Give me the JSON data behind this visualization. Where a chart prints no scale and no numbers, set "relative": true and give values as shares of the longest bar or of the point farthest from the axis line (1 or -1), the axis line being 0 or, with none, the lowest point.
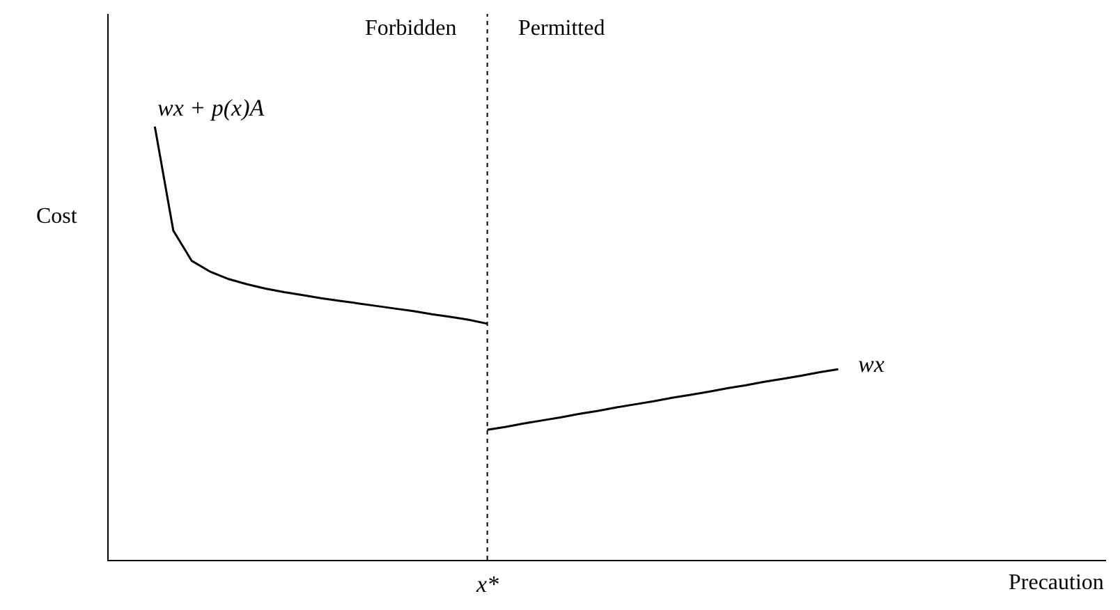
{
  "chart_data": {
    "type": "line",
    "relative": true,
    "xlabel": "Precaution",
    "ylabel": "Cost",
    "legend": false,
    "marker": "none",
    "line_style": "solid",
    "categories": [
      null,
      null,
      null,
      null,
      null,
      null,
      null,
      null,
      null,
      null,
      null,
      null,
      null,
      null,
      null,
      null,
      null,
      null,
      null,
      null,
      null,
      null,
      null,
      null,
      null,
      null,
      null,
      null,
      null,
      null,
      null,
      null,
      null,
      null,
      null,
      null,
      null,
      null,
      null,
      null,
      null,
      null,
      null,
      null,
      null,
      null,
      null,
      null,
      null,
      null,
      null,
      null,
      null,
      null
    ],
    "series": [
      {
        "name": "wx + p(x)A",
        "color": "#000000",
        "values": [
          null,
          null,
          1.0,
          0.76,
          0.69,
          0.665,
          0.648,
          0.636,
          0.626,
          0.618,
          0.611,
          0.604,
          0.598,
          0.592,
          0.586,
          0.58,
          0.574,
          0.567,
          0.561,
          0.554,
          0.545,
          null,
          null,
          null,
          null,
          null,
          null,
          null,
          null,
          null,
          null,
          null,
          null,
          null,
          null,
          null,
          null,
          null,
          null,
          null,
          null,
          null,
          null,
          null,
          null,
          null,
          null,
          null,
          null,
          null,
          null,
          null,
          null,
          null
        ]
      },
      {
        "name": "wx",
        "color": "#000000",
        "values": [
          null,
          null,
          null,
          null,
          null,
          null,
          null,
          null,
          null,
          null,
          null,
          null,
          null,
          null,
          null,
          null,
          null,
          null,
          null,
          null,
          0.3,
          0.307,
          0.315,
          0.322,
          0.329,
          0.337,
          0.344,
          0.352,
          0.359,
          0.366,
          0.374,
          0.381,
          0.388,
          0.396,
          0.403,
          0.411,
          0.418,
          0.425,
          0.433,
          0.44,
          null,
          null,
          null,
          null,
          null,
          null,
          null,
          null,
          null,
          null,
          null,
          null,
          null,
          null
        ]
      }
    ],
    "ref_lines": [
      {
        "axis": "x",
        "label": "x*",
        "line_style": "dotted",
        "color": "#000000"
      }
    ],
    "annotations": [
      "Forbidden",
      "Permitted"
    ]
  }
}
